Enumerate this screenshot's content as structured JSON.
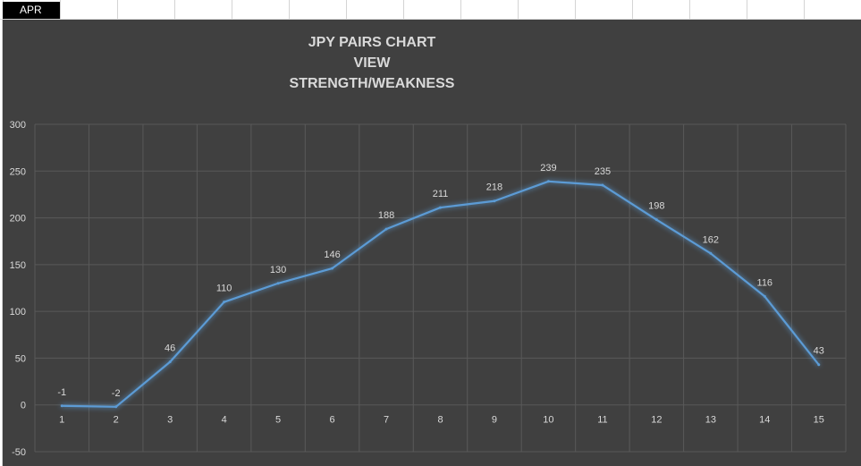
{
  "sheet": {
    "cell_label": "APR"
  },
  "chart_data": {
    "type": "line",
    "title_lines": [
      "JPY PAIRS CHART",
      "VIEW",
      "STRENGTH/WEAKNESS"
    ],
    "x": [
      1,
      2,
      3,
      4,
      5,
      6,
      7,
      8,
      9,
      10,
      11,
      12,
      13,
      14,
      15
    ],
    "values": [
      -1,
      -2,
      46,
      110,
      130,
      146,
      188,
      211,
      218,
      239,
      235,
      198,
      162,
      116,
      43
    ],
    "ylim": [
      -50,
      300
    ],
    "yticks": [
      -50,
      0,
      50,
      100,
      150,
      200,
      250,
      300
    ],
    "grid": true,
    "legend": "none"
  },
  "colors": {
    "background": "#404040",
    "line": "#5b9bd5",
    "grid": "#595959",
    "text": "#d9d9d9"
  }
}
